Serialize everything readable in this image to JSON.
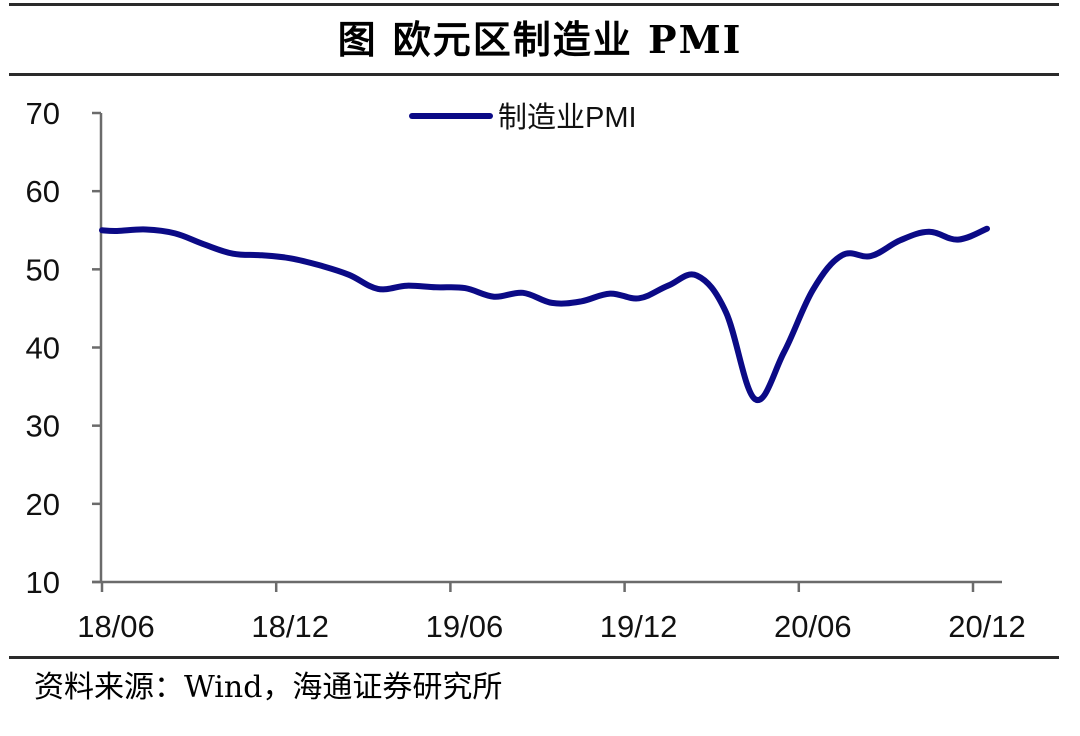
{
  "title": "图  欧元区制造业 PMI",
  "source": "资料来源：Wind，海通证券研究所",
  "colors": {
    "line": "#0b0a86",
    "axis": "#6b6b6b",
    "rule": "#2a2a2a"
  },
  "chart_data": {
    "type": "line",
    "title": "欧元区制造业 PMI",
    "xlabel": "",
    "ylabel": "",
    "ylim": [
      10,
      70
    ],
    "yticks": [
      10,
      20,
      30,
      40,
      50,
      60,
      70
    ],
    "xtick_labels": [
      "18/06",
      "18/12",
      "19/06",
      "19/12",
      "20/06",
      "20/12"
    ],
    "grid": false,
    "legend_position": "top-center",
    "categories": [
      "18/06",
      "18/07",
      "18/08",
      "18/09",
      "18/10",
      "18/11",
      "18/12",
      "19/01",
      "19/02",
      "19/03",
      "19/04",
      "19/05",
      "19/06",
      "19/07",
      "19/08",
      "19/09",
      "19/10",
      "19/11",
      "19/12",
      "20/01",
      "20/02",
      "20/03",
      "20/04",
      "20/05",
      "20/06",
      "20/07",
      "20/08",
      "20/09",
      "20/10",
      "20/11",
      "20/12"
    ],
    "series": [
      {
        "name": "制造业PMI",
        "values": [
          54.9,
          55.1,
          54.6,
          53.2,
          52.0,
          51.8,
          51.4,
          50.5,
          49.3,
          47.5,
          47.9,
          47.7,
          47.6,
          46.5,
          47.0,
          45.7,
          45.9,
          46.9,
          46.3,
          47.9,
          49.2,
          44.5,
          33.4,
          39.4,
          47.4,
          51.8,
          51.7,
          53.7,
          54.8,
          53.8,
          55.2
        ]
      }
    ]
  }
}
